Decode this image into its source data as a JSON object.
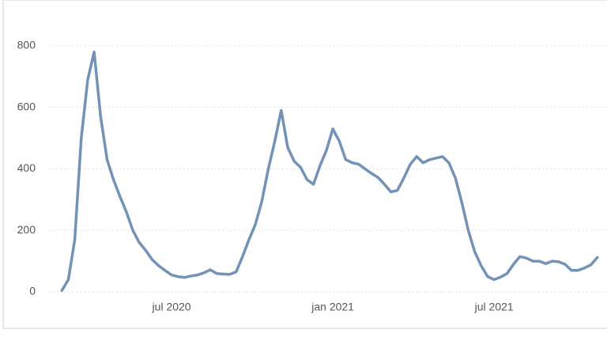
{
  "chart_data": {
    "type": "line",
    "x": [
      2020.16,
      2020.18,
      2020.2,
      2020.22,
      2020.24,
      2020.26,
      2020.28,
      2020.3,
      2020.32,
      2020.34,
      2020.36,
      2020.38,
      2020.4,
      2020.42,
      2020.44,
      2020.46,
      2020.48,
      2020.5,
      2020.52,
      2020.54,
      2020.56,
      2020.58,
      2020.6,
      2020.62,
      2020.64,
      2020.66,
      2020.68,
      2020.7,
      2020.72,
      2020.74,
      2020.76,
      2020.78,
      2020.8,
      2020.82,
      2020.84,
      2020.86,
      2020.88,
      2020.9,
      2020.92,
      2020.94,
      2020.96,
      2020.98,
      2021.0,
      2021.02,
      2021.04,
      2021.06,
      2021.08,
      2021.1,
      2021.12,
      2021.14,
      2021.16,
      2021.18,
      2021.2,
      2021.22,
      2021.24,
      2021.26,
      2021.28,
      2021.3,
      2021.32,
      2021.34,
      2021.36,
      2021.38,
      2021.4,
      2021.42,
      2021.44,
      2021.46,
      2021.48,
      2021.5,
      2021.52,
      2021.54,
      2021.56,
      2021.58,
      2021.6,
      2021.62,
      2021.64,
      2021.66,
      2021.68,
      2021.7,
      2021.72,
      2021.74,
      2021.76,
      2021.78,
      2021.8,
      2021.82
    ],
    "values": [
      5,
      40,
      170,
      500,
      690,
      780,
      570,
      430,
      365,
      310,
      260,
      200,
      160,
      135,
      105,
      85,
      70,
      55,
      50,
      47,
      52,
      55,
      62,
      72,
      60,
      58,
      57,
      65,
      115,
      170,
      220,
      295,
      400,
      490,
      590,
      470,
      425,
      405,
      365,
      350,
      410,
      460,
      530,
      490,
      430,
      420,
      415,
      400,
      385,
      372,
      350,
      325,
      330,
      370,
      415,
      440,
      420,
      430,
      435,
      440,
      420,
      370,
      290,
      200,
      130,
      85,
      50,
      40,
      48,
      60,
      90,
      115,
      110,
      100,
      100,
      92,
      100,
      98,
      90,
      70,
      70,
      78,
      88,
      112
    ],
    "color": "#7393b6",
    "xlim": [
      2020.12,
      2021.85
    ],
    "xticks": [
      {
        "value": 2020.5,
        "label": "jul 2020"
      },
      {
        "value": 2021.0,
        "label": "jan 2021"
      },
      {
        "value": 2021.5,
        "label": "jul 2021"
      }
    ],
    "ylim": [
      0,
      900
    ],
    "yticks": [
      0,
      200,
      400,
      600,
      800
    ],
    "grid": true
  }
}
